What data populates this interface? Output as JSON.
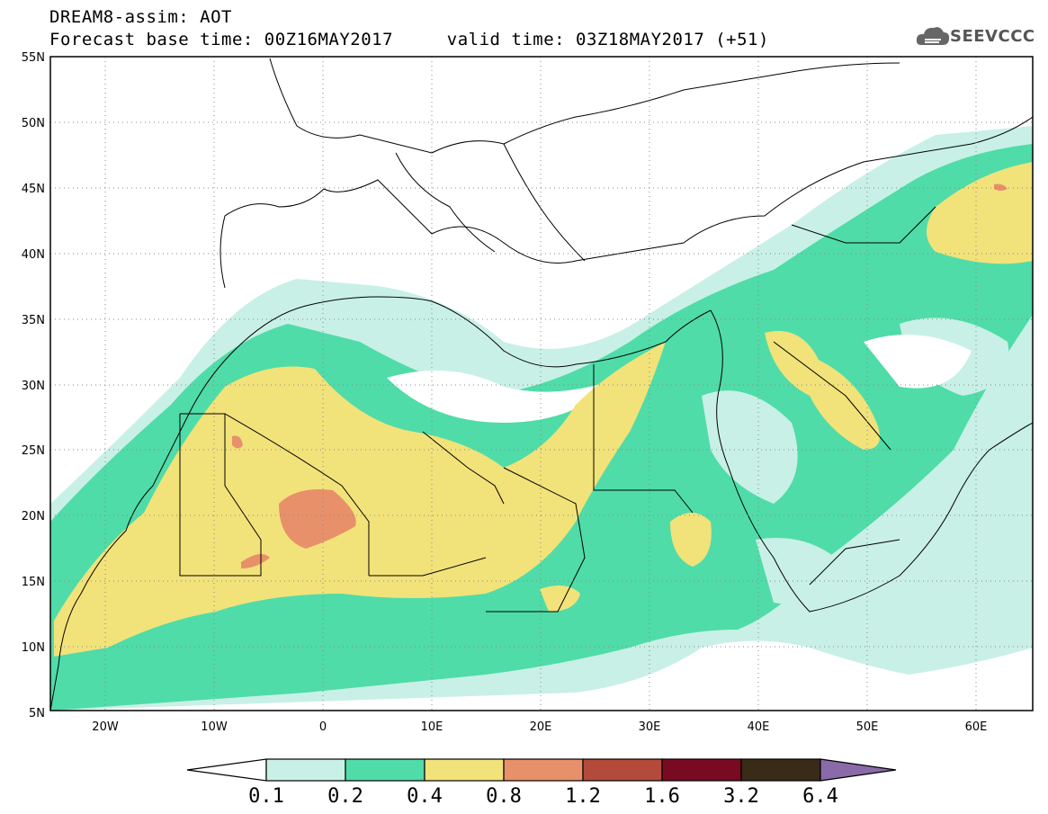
{
  "header": {
    "title": "DREAM8-assim: AOT",
    "base_time_label": "Forecast base time: 00Z16MAY2017",
    "valid_time_label": "valid time: 03Z18MAY2017 (+51)"
  },
  "logo": {
    "text": "SEEVCCC",
    "icon": "cloud-logo-icon"
  },
  "map": {
    "projection": "equirectangular",
    "lon_range": [
      -25,
      65
    ],
    "lat_range": [
      5,
      55
    ],
    "lat_ticks": [
      "55N",
      "50N",
      "45N",
      "40N",
      "35N",
      "30N",
      "25N",
      "20N",
      "15N",
      "10N",
      "5N"
    ],
    "lon_ticks": [
      "20W",
      "10W",
      "0",
      "10E",
      "20E",
      "30E",
      "40E",
      "50E",
      "60E"
    ],
    "grid": "dotted"
  },
  "colorbar": {
    "labels": [
      "0.1",
      "0.2",
      "0.4",
      "0.8",
      "1.2",
      "1.6",
      "3.2",
      "6.4"
    ],
    "colors": [
      "#c8f0e6",
      "#4fdca8",
      "#f2e27a",
      "#e8906a",
      "#b44a3a",
      "#7a0a22",
      "#3a2a18",
      "#8a6aa8"
    ],
    "under_color": "#ffffff"
  }
}
